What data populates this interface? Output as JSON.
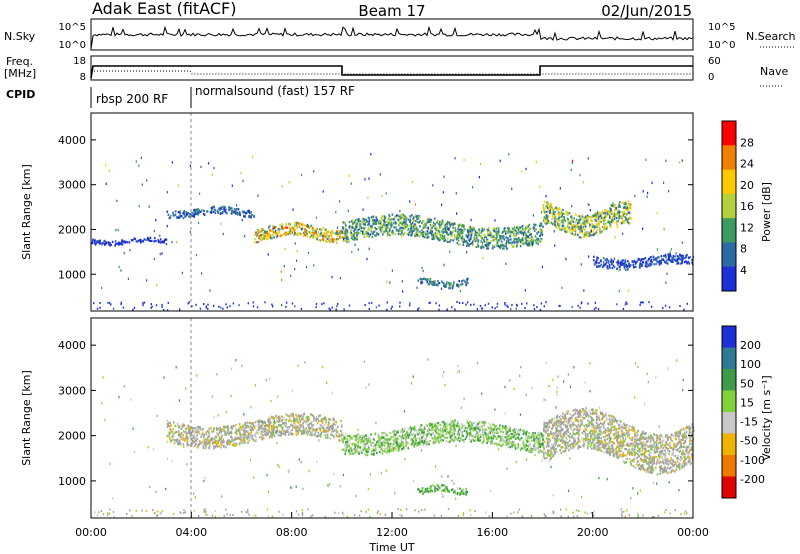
{
  "header": {
    "left_title": "Adak East (fitACF)",
    "center_title": "Beam 17",
    "right_title": "02/Jun/2015"
  },
  "status_panels": {
    "nsky_label": "N.Sky",
    "nsky_ticks": [
      "10^5",
      "10^0"
    ],
    "nsearch_label": "N.Search",
    "nsearch_ticks": [
      "10^5",
      "10^0"
    ],
    "freq_label_1": "Freq.",
    "freq_label_2": "[MHz]",
    "freq_ticks": [
      "18",
      "8"
    ],
    "nave_label": "Nave",
    "nave_ticks": [
      "60",
      "0"
    ],
    "cpid_label": "CPID",
    "cpid_segments": [
      {
        "name": "rbsp 200 RF",
        "start_hour": 0.0
      },
      {
        "name": "normalsound (fast) 157 RF",
        "start_hour": 4.0
      }
    ]
  },
  "chart_data": [
    {
      "type": "heatmap",
      "panel": "power",
      "ylabel": "Slant Range [km]",
      "yticks": [
        1000,
        2000,
        3000,
        4000
      ],
      "ylim": [
        180,
        4600
      ],
      "xlim_hours": [
        0,
        24
      ],
      "colorbar_label": "Power [dB]",
      "colorbar_ticks": [
        "28",
        "24",
        "20",
        "16",
        "12",
        "8",
        "4"
      ],
      "colorbar_colors": [
        "#ff0000",
        "#f08000",
        "#ffc800",
        "#b4d23c",
        "#3c9c60",
        "#2d6aa8",
        "#1c2fd8"
      ],
      "echo_bands": [
        {
          "hours": [
            0.0,
            3.0
          ],
          "range_km": [
            1650,
            1850
          ],
          "peak_db": 6
        },
        {
          "hours": [
            3.0,
            6.5
          ],
          "range_km": [
            2250,
            2550
          ],
          "peak_db": 10
        },
        {
          "hours": [
            6.5,
            10.0
          ],
          "range_km": [
            1700,
            2200
          ],
          "peak_db": 24
        },
        {
          "hours": [
            10.0,
            18.0
          ],
          "range_km": [
            1550,
            2400
          ],
          "peak_db": 16
        },
        {
          "hours": [
            13.0,
            15.0
          ],
          "range_km": [
            700,
            950
          ],
          "peak_db": 12
        },
        {
          "hours": [
            18.0,
            21.5
          ],
          "range_km": [
            1800,
            2700
          ],
          "peak_db": 20
        },
        {
          "hours": [
            20.0,
            24.0
          ],
          "range_km": [
            1100,
            1500
          ],
          "peak_db": 8
        }
      ]
    },
    {
      "type": "heatmap",
      "panel": "velocity",
      "ylabel": "Slant Range [km]",
      "yticks": [
        1000,
        2000,
        3000,
        4000
      ],
      "ylim": [
        180,
        4600
      ],
      "xlim_hours": [
        0,
        24
      ],
      "xticks": [
        "00:00",
        "04:00",
        "08:00",
        "12:00",
        "16:00",
        "20:00",
        "00:00"
      ],
      "xlabel": "Time UT",
      "colorbar_label": "Velocity [m s⁻¹]",
      "colorbar_ticks": [
        "200",
        "100",
        "50",
        "15",
        "-15",
        "-50",
        "-100",
        "-200"
      ],
      "colorbar_colors": [
        "#1c2fd8",
        "#2e7a96",
        "#3c9c48",
        "#7fd23a",
        "#c8c8c8",
        "#f0b400",
        "#f07800",
        "#e00000"
      ],
      "echo_bands": [
        {
          "hours": [
            3.0,
            10.0
          ],
          "range_km": [
            1700,
            2550
          ],
          "velocity_ms": -5
        },
        {
          "hours": [
            10.0,
            18.0
          ],
          "range_km": [
            1550,
            2400
          ],
          "velocity_ms": 30
        },
        {
          "hours": [
            13.0,
            15.0
          ],
          "range_km": [
            700,
            950
          ],
          "velocity_ms": 60
        },
        {
          "hours": [
            18.0,
            24.0
          ],
          "range_km": [
            1100,
            2700
          ],
          "velocity_ms": 0
        }
      ]
    }
  ],
  "colors": {
    "axis": "#000000",
    "ground_scatter": "#a0a0a0"
  }
}
